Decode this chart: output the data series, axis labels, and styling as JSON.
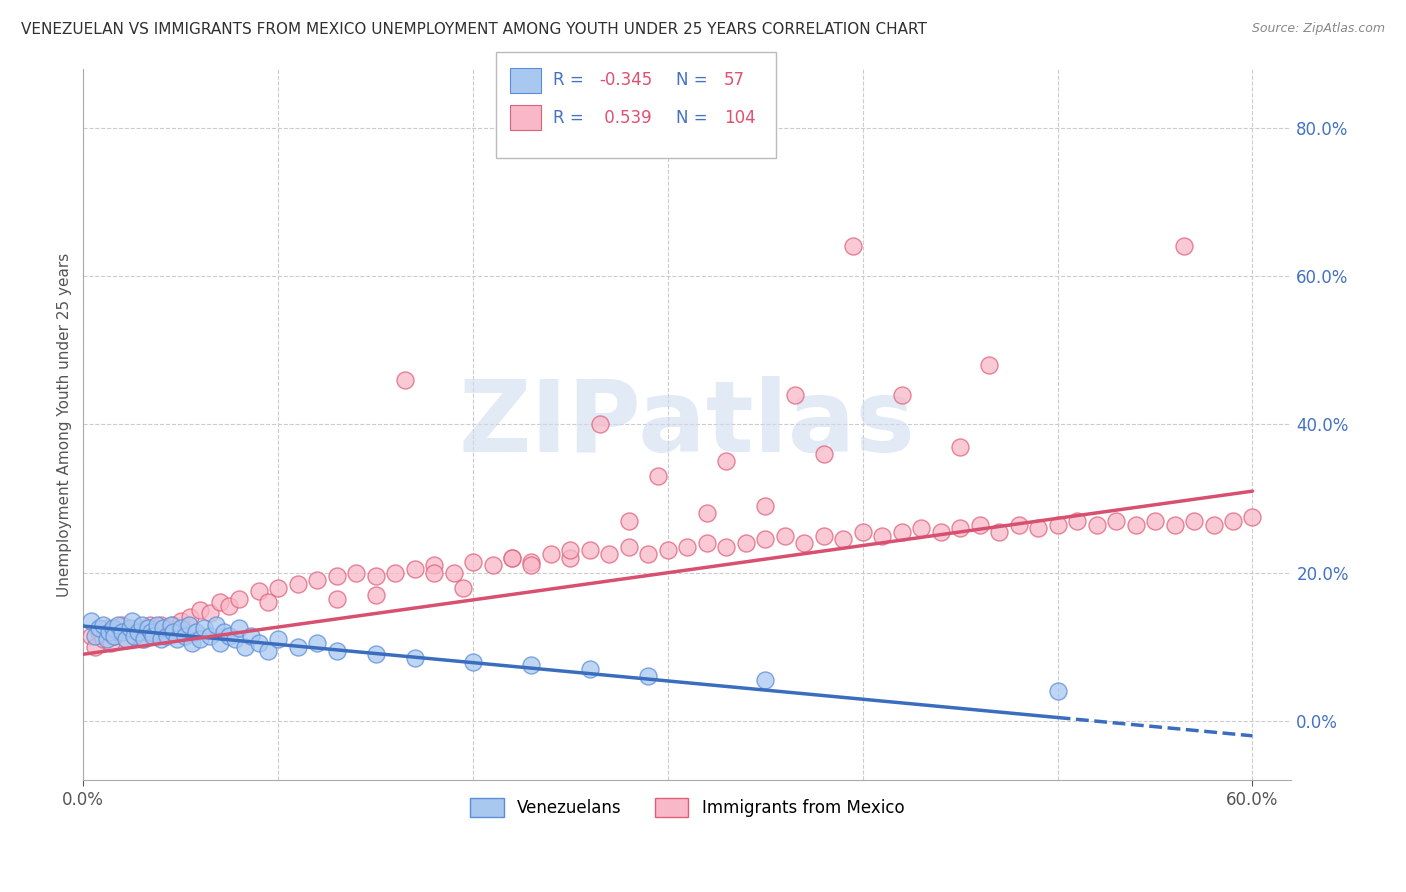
{
  "title": "VENEZUELAN VS IMMIGRANTS FROM MEXICO UNEMPLOYMENT AMONG YOUTH UNDER 25 YEARS CORRELATION CHART",
  "source": "Source: ZipAtlas.com",
  "ylabel": "Unemployment Among Youth under 25 years",
  "xlim": [
    0.0,
    0.62
  ],
  "ylim": [
    -0.08,
    0.88
  ],
  "xtick_vals": [
    0.0,
    0.6
  ],
  "xticklabels": [
    "0.0%",
    "60.0%"
  ],
  "ytick_vals": [
    0.0,
    0.2,
    0.4,
    0.6,
    0.8
  ],
  "yticklabels_right": [
    "0.0%",
    "20.0%",
    "40.0%",
    "60.0%",
    "80.0%"
  ],
  "color_venezuelan_fill": "#A8C8F0",
  "color_venezuelan_edge": "#5B8DD9",
  "color_mexico_fill": "#F8B8C8",
  "color_mexico_edge": "#E0607A",
  "color_line_venezuelan": "#3B6DBF",
  "color_line_mexico": "#D85070",
  "color_title": "#303030",
  "background": "#FFFFFF",
  "grid_color": "#CCCCCC",
  "venezuelan_x": [
    0.004,
    0.006,
    0.008,
    0.01,
    0.012,
    0.013,
    0.015,
    0.016,
    0.018,
    0.02,
    0.022,
    0.024,
    0.025,
    0.026,
    0.028,
    0.03,
    0.031,
    0.033,
    0.035,
    0.036,
    0.038,
    0.04,
    0.041,
    0.043,
    0.045,
    0.046,
    0.048,
    0.05,
    0.052,
    0.054,
    0.056,
    0.058,
    0.06,
    0.062,
    0.065,
    0.068,
    0.07,
    0.072,
    0.075,
    0.078,
    0.08,
    0.083,
    0.086,
    0.09,
    0.095,
    0.1,
    0.11,
    0.12,
    0.13,
    0.15,
    0.17,
    0.2,
    0.23,
    0.26,
    0.29,
    0.35,
    0.5
  ],
  "venezuelan_y": [
    0.135,
    0.115,
    0.125,
    0.13,
    0.11,
    0.12,
    0.125,
    0.115,
    0.13,
    0.12,
    0.11,
    0.125,
    0.135,
    0.115,
    0.12,
    0.13,
    0.11,
    0.125,
    0.12,
    0.115,
    0.13,
    0.11,
    0.125,
    0.115,
    0.13,
    0.12,
    0.11,
    0.125,
    0.115,
    0.13,
    0.105,
    0.12,
    0.11,
    0.125,
    0.115,
    0.13,
    0.105,
    0.12,
    0.115,
    0.11,
    0.125,
    0.1,
    0.115,
    0.105,
    0.095,
    0.11,
    0.1,
    0.105,
    0.095,
    0.09,
    0.085,
    0.08,
    0.075,
    0.07,
    0.06,
    0.055,
    0.04
  ],
  "mexico_x": [
    0.004,
    0.006,
    0.008,
    0.01,
    0.012,
    0.014,
    0.016,
    0.018,
    0.02,
    0.022,
    0.024,
    0.026,
    0.028,
    0.03,
    0.032,
    0.034,
    0.036,
    0.038,
    0.04,
    0.042,
    0.044,
    0.046,
    0.048,
    0.05,
    0.055,
    0.06,
    0.065,
    0.07,
    0.075,
    0.08,
    0.09,
    0.1,
    0.11,
    0.12,
    0.13,
    0.14,
    0.15,
    0.16,
    0.17,
    0.18,
    0.19,
    0.2,
    0.21,
    0.22,
    0.23,
    0.24,
    0.25,
    0.26,
    0.27,
    0.28,
    0.29,
    0.3,
    0.31,
    0.32,
    0.33,
    0.34,
    0.35,
    0.36,
    0.37,
    0.38,
    0.39,
    0.4,
    0.41,
    0.42,
    0.43,
    0.44,
    0.45,
    0.46,
    0.47,
    0.48,
    0.49,
    0.5,
    0.51,
    0.52,
    0.53,
    0.54,
    0.55,
    0.56,
    0.57,
    0.58,
    0.59,
    0.6,
    0.15,
    0.25,
    0.35,
    0.45,
    0.18,
    0.28,
    0.38,
    0.22,
    0.32,
    0.42,
    0.13,
    0.23,
    0.33,
    0.165,
    0.265,
    0.365,
    0.465,
    0.565,
    0.095,
    0.195,
    0.295,
    0.395
  ],
  "mexico_y": [
    0.115,
    0.1,
    0.12,
    0.11,
    0.125,
    0.105,
    0.115,
    0.12,
    0.13,
    0.11,
    0.12,
    0.115,
    0.125,
    0.11,
    0.12,
    0.13,
    0.115,
    0.12,
    0.13,
    0.115,
    0.125,
    0.13,
    0.12,
    0.135,
    0.14,
    0.15,
    0.145,
    0.16,
    0.155,
    0.165,
    0.175,
    0.18,
    0.185,
    0.19,
    0.195,
    0.2,
    0.195,
    0.2,
    0.205,
    0.21,
    0.2,
    0.215,
    0.21,
    0.22,
    0.215,
    0.225,
    0.22,
    0.23,
    0.225,
    0.235,
    0.225,
    0.23,
    0.235,
    0.24,
    0.235,
    0.24,
    0.245,
    0.25,
    0.24,
    0.25,
    0.245,
    0.255,
    0.25,
    0.255,
    0.26,
    0.255,
    0.26,
    0.265,
    0.255,
    0.265,
    0.26,
    0.265,
    0.27,
    0.265,
    0.27,
    0.265,
    0.27,
    0.265,
    0.27,
    0.265,
    0.27,
    0.275,
    0.17,
    0.23,
    0.29,
    0.37,
    0.2,
    0.27,
    0.36,
    0.22,
    0.28,
    0.44,
    0.165,
    0.21,
    0.35,
    0.46,
    0.4,
    0.44,
    0.48,
    0.64,
    0.16,
    0.18,
    0.33,
    0.64
  ],
  "trendline_ven_x0": 0.0,
  "trendline_ven_y0": 0.128,
  "trendline_ven_x1": 0.6,
  "trendline_ven_y1": -0.02,
  "trendline_ven_solid_end": 0.5,
  "trendline_mex_x0": 0.0,
  "trendline_mex_y0": 0.09,
  "trendline_mex_x1": 0.6,
  "trendline_mex_y1": 0.31
}
